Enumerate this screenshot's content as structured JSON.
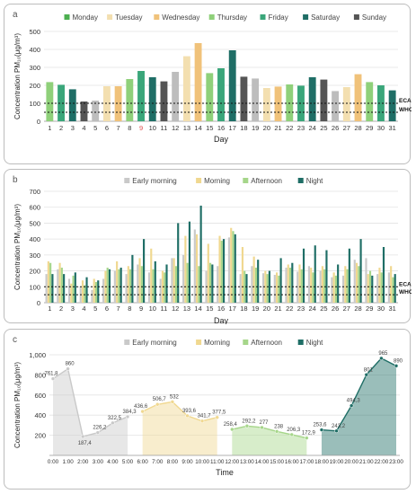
{
  "chart_data": [
    {
      "type": "bar",
      "panel_label": "a",
      "legend": [
        {
          "name": "Monday",
          "color": "#4caf50"
        },
        {
          "name": "Tuesday",
          "color": "#f3dfb0"
        },
        {
          "name": "Wednesday",
          "color": "#f0c27a"
        },
        {
          "name": "Thursday",
          "color": "#8fd07a"
        },
        {
          "name": "Friday",
          "color": "#3aa67a"
        },
        {
          "name": "Saturday",
          "color": "#1f6e66"
        },
        {
          "name": "Sunday",
          "color": "#555555"
        }
      ],
      "xlabel": "Day",
      "ylabel": "Concentration PM₁₀(μg/m³)",
      "ylim": [
        0,
        500
      ],
      "yticks": [
        0,
        100,
        200,
        300,
        400,
        500
      ],
      "categories": [
        "1",
        "2",
        "3",
        "4",
        "5",
        "6",
        "7",
        "8",
        "9",
        "10",
        "11",
        "12",
        "13",
        "14",
        "15",
        "16",
        "17",
        "18",
        "19",
        "20",
        "21",
        "22",
        "23",
        "24",
        "25",
        "26",
        "27",
        "28",
        "29",
        "30",
        "31"
      ],
      "highlight_category": "9",
      "highlight_color": "#e05050",
      "values": [
        218,
        203,
        178,
        110,
        115,
        195,
        195,
        235,
        280,
        245,
        222,
        275,
        362,
        435,
        268,
        295,
        395,
        248,
        238,
        185,
        193,
        205,
        198,
        245,
        232,
        168,
        190,
        262,
        218,
        200,
        172
      ],
      "bar_colors": [
        "#8fd07a",
        "#3aa67a",
        "#1f6e66",
        "#555555",
        "#bdbdbd",
        "#f3dfb0",
        "#f0c27a",
        "#8fd07a",
        "#3aa67a",
        "#1f6e66",
        "#555555",
        "#bdbdbd",
        "#f3dfb0",
        "#f0c27a",
        "#8fd07a",
        "#3aa67a",
        "#1f6e66",
        "#555555",
        "#bdbdbd",
        "#f3dfb0",
        "#f0c27a",
        "#8fd07a",
        "#3aa67a",
        "#1f6e66",
        "#555555",
        "#bdbdbd",
        "#f3dfb0",
        "#f0c27a",
        "#8fd07a",
        "#3aa67a",
        "#1f6e66"
      ],
      "reference_lines": [
        {
          "label": "ECA",
          "value": 100
        },
        {
          "label": "WHO",
          "value": 50
        }
      ],
      "grid": true
    },
    {
      "type": "bar",
      "panel_label": "b",
      "legend": [
        {
          "name": "Early morning",
          "color": "#c9c9c9"
        },
        {
          "name": "Morning",
          "color": "#f0d890"
        },
        {
          "name": "Afternoon",
          "color": "#a6d68a"
        },
        {
          "name": "Night",
          "color": "#1f6e66"
        }
      ],
      "xlabel": "Day",
      "ylabel": "Concentration PM₁₀(μg/m³)",
      "ylim": [
        0,
        700
      ],
      "yticks": [
        0,
        100,
        200,
        300,
        400,
        500,
        600,
        700
      ],
      "categories": [
        "1",
        "2",
        "3",
        "4",
        "5",
        "6",
        "7",
        "8",
        "9",
        "10",
        "11",
        "12",
        "13",
        "14",
        "15",
        "16",
        "17",
        "18",
        "19",
        "20",
        "21",
        "22",
        "23",
        "24",
        "25",
        "26",
        "27",
        "28",
        "29",
        "30",
        "31"
      ],
      "series": [
        {
          "name": "Early morning",
          "values": [
            180,
            210,
            150,
            95,
            80,
            150,
            200,
            180,
            240,
            190,
            150,
            280,
            300,
            460,
            200,
            230,
            410,
            180,
            230,
            185,
            175,
            220,
            195,
            230,
            200,
            160,
            170,
            270,
            280,
            180,
            190
          ]
        },
        {
          "name": "Morning",
          "values": [
            260,
            250,
            120,
            140,
            150,
            200,
            260,
            230,
            280,
            340,
            200,
            280,
            420,
            430,
            370,
            420,
            470,
            350,
            290,
            200,
            190,
            240,
            240,
            220,
            230,
            190,
            230,
            250,
            180,
            220,
            230
          ]
        },
        {
          "name": "Afternoon",
          "values": [
            250,
            220,
            170,
            110,
            130,
            220,
            210,
            210,
            230,
            210,
            190,
            230,
            250,
            230,
            250,
            390,
            450,
            200,
            220,
            180,
            170,
            220,
            210,
            190,
            210,
            170,
            210,
            230,
            200,
            190,
            160
          ]
        },
        {
          "name": "Night",
          "values": [
            180,
            180,
            190,
            160,
            140,
            210,
            220,
            300,
            400,
            260,
            240,
            500,
            510,
            610,
            240,
            400,
            430,
            180,
            270,
            200,
            280,
            250,
            340,
            360,
            330,
            240,
            340,
            400,
            170,
            350,
            180
          ]
        }
      ],
      "reference_lines": [
        {
          "label": "ECA",
          "value": 100
        },
        {
          "label": "WHO",
          "value": 50
        }
      ],
      "grid": true
    },
    {
      "type": "area",
      "panel_label": "c",
      "legend": [
        {
          "name": "Early morning",
          "color": "#c9c9c9"
        },
        {
          "name": "Morning",
          "color": "#f0d890"
        },
        {
          "name": "Afternoon",
          "color": "#a6d68a"
        },
        {
          "name": "Night",
          "color": "#1f6e66"
        }
      ],
      "xlabel": "Time",
      "ylabel": "Concentration PM₁₀(μg/m³)",
      "ylim": [
        0,
        1000
      ],
      "yticks": [
        200,
        400,
        600,
        800,
        1000
      ],
      "ytick_labels": [
        "200",
        "400",
        "600",
        "800",
        "1,000"
      ],
      "x": [
        "0:00",
        "1:00",
        "2:00",
        "3:00",
        "4:00",
        "5:00",
        "6:00",
        "7:00",
        "8:00",
        "9:00",
        "10:00",
        "11:00",
        "12:00",
        "13:00",
        "14:00",
        "15:00",
        "16:00",
        "17:00",
        "18:00",
        "19:00",
        "20:00",
        "21:00",
        "22:00",
        "23:00"
      ],
      "series": [
        {
          "name": "Early morning",
          "color": "#c9c9c9",
          "x": [
            0,
            1,
            2,
            3,
            4,
            5
          ],
          "values": [
            761.8,
            860,
            187.4,
            226.2,
            322.5,
            384.3
          ],
          "labels": [
            "761,8",
            "860",
            "187,4",
            "226,2",
            "322,5",
            "384,3"
          ]
        },
        {
          "name": "Morning",
          "color": "#f0d890",
          "x": [
            6,
            7,
            8,
            9,
            10,
            11
          ],
          "values": [
            436.6,
            506.7,
            532,
            393.6,
            341.7,
            377.5
          ],
          "labels": [
            "436,6",
            "506,7",
            "532",
            "393,6",
            "341,7",
            "377,5"
          ]
        },
        {
          "name": "Afternoon",
          "color": "#a6d68a",
          "x": [
            12,
            13,
            14,
            15,
            16,
            17
          ],
          "values": [
            258.4,
            292.2,
            277,
            238,
            206.3,
            172.9
          ],
          "labels": [
            "258,4",
            "292,2",
            "277",
            "238",
            "206,3",
            "172,9"
          ]
        },
        {
          "name": "Night",
          "color": "#1f6e66",
          "x": [
            18,
            19,
            20,
            21,
            22,
            23
          ],
          "values": [
            253.6,
            243.2,
            494.3,
            801,
            965,
            890
          ],
          "labels": [
            "253,6",
            "243,2",
            "494,3",
            "801",
            "965",
            "890"
          ]
        }
      ],
      "grid": true
    }
  ]
}
